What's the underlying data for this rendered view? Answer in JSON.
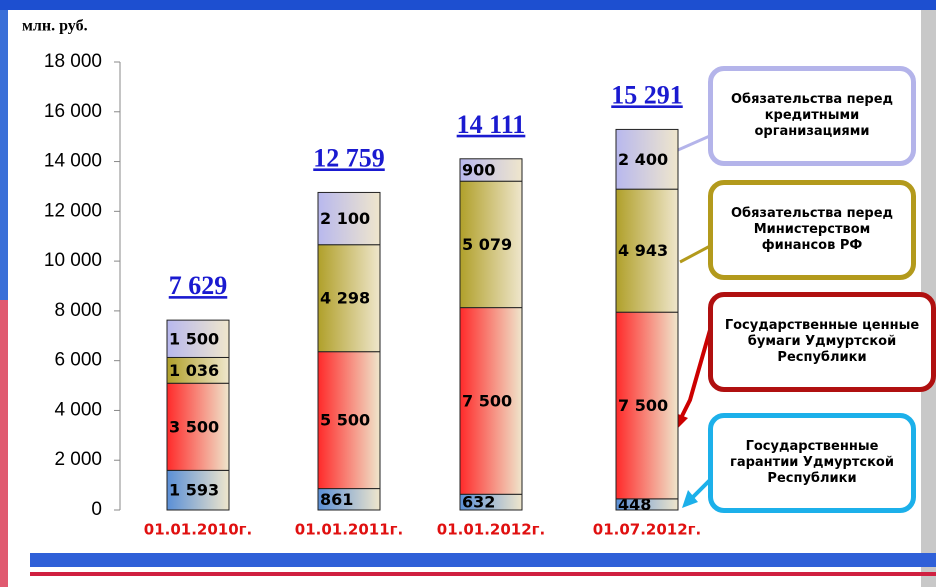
{
  "chart_data": {
    "type": "stacked_bar",
    "unit_label": "млн. руб.",
    "categories": [
      "01.01.2010г.",
      "01.01.2011г.",
      "01.01.2012г.",
      "01.07.2012г."
    ],
    "series": [
      {
        "name": "Государственные гарантии Удмуртской Республики",
        "color": "#5a8fd6",
        "border": "#1cb0ea",
        "values": [
          1593,
          861,
          632,
          448
        ],
        "value_labels": [
          "1 593",
          "861",
          "632",
          "448"
        ]
      },
      {
        "name": "Государственные ценные бумаги Удмуртской Республики",
        "color": "#ff2a2a",
        "border": "#b01010",
        "values": [
          3500,
          5500,
          7500,
          7500
        ],
        "value_labels": [
          "3 500",
          "5 500",
          "7 500",
          "7 500"
        ]
      },
      {
        "name": "Обязательства перед Министерством финансов РФ",
        "color": "#b0a02a",
        "border": "#b39a1c",
        "values": [
          1036,
          4298,
          5079,
          4943
        ],
        "value_labels": [
          "1 036",
          "4 298",
          "5 079",
          "4 943"
        ]
      },
      {
        "name": "Обязательства перед кредитными организациями",
        "color": "#b8b8ee",
        "border": "#b4b4ea",
        "values": [
          1500,
          2100,
          900,
          2400
        ],
        "value_labels": [
          "1 500",
          "2 100",
          "900",
          "2 400"
        ]
      }
    ],
    "totals": {
      "values": [
        7629,
        12759,
        14111,
        15291
      ],
      "value_labels": [
        "7 629",
        "12 759",
        "14 111",
        "15 291"
      ]
    },
    "ylim": [
      0,
      18000
    ],
    "yticks": [
      0,
      {
        "value": 2000,
        "label": "2 000"
      },
      {
        "value": 4000,
        "label": "4 000"
      },
      {
        "value": 6000,
        "label": "6 000"
      },
      {
        "value": 8000,
        "label": "8 000"
      },
      {
        "value": 10000,
        "label": "10 000"
      },
      {
        "value": 12000,
        "label": "12 000"
      },
      {
        "value": 14000,
        "label": "14 000"
      },
      {
        "value": 16000,
        "label": "16 000"
      },
      {
        "value": 18000,
        "label": "18 000"
      }
    ]
  }
}
